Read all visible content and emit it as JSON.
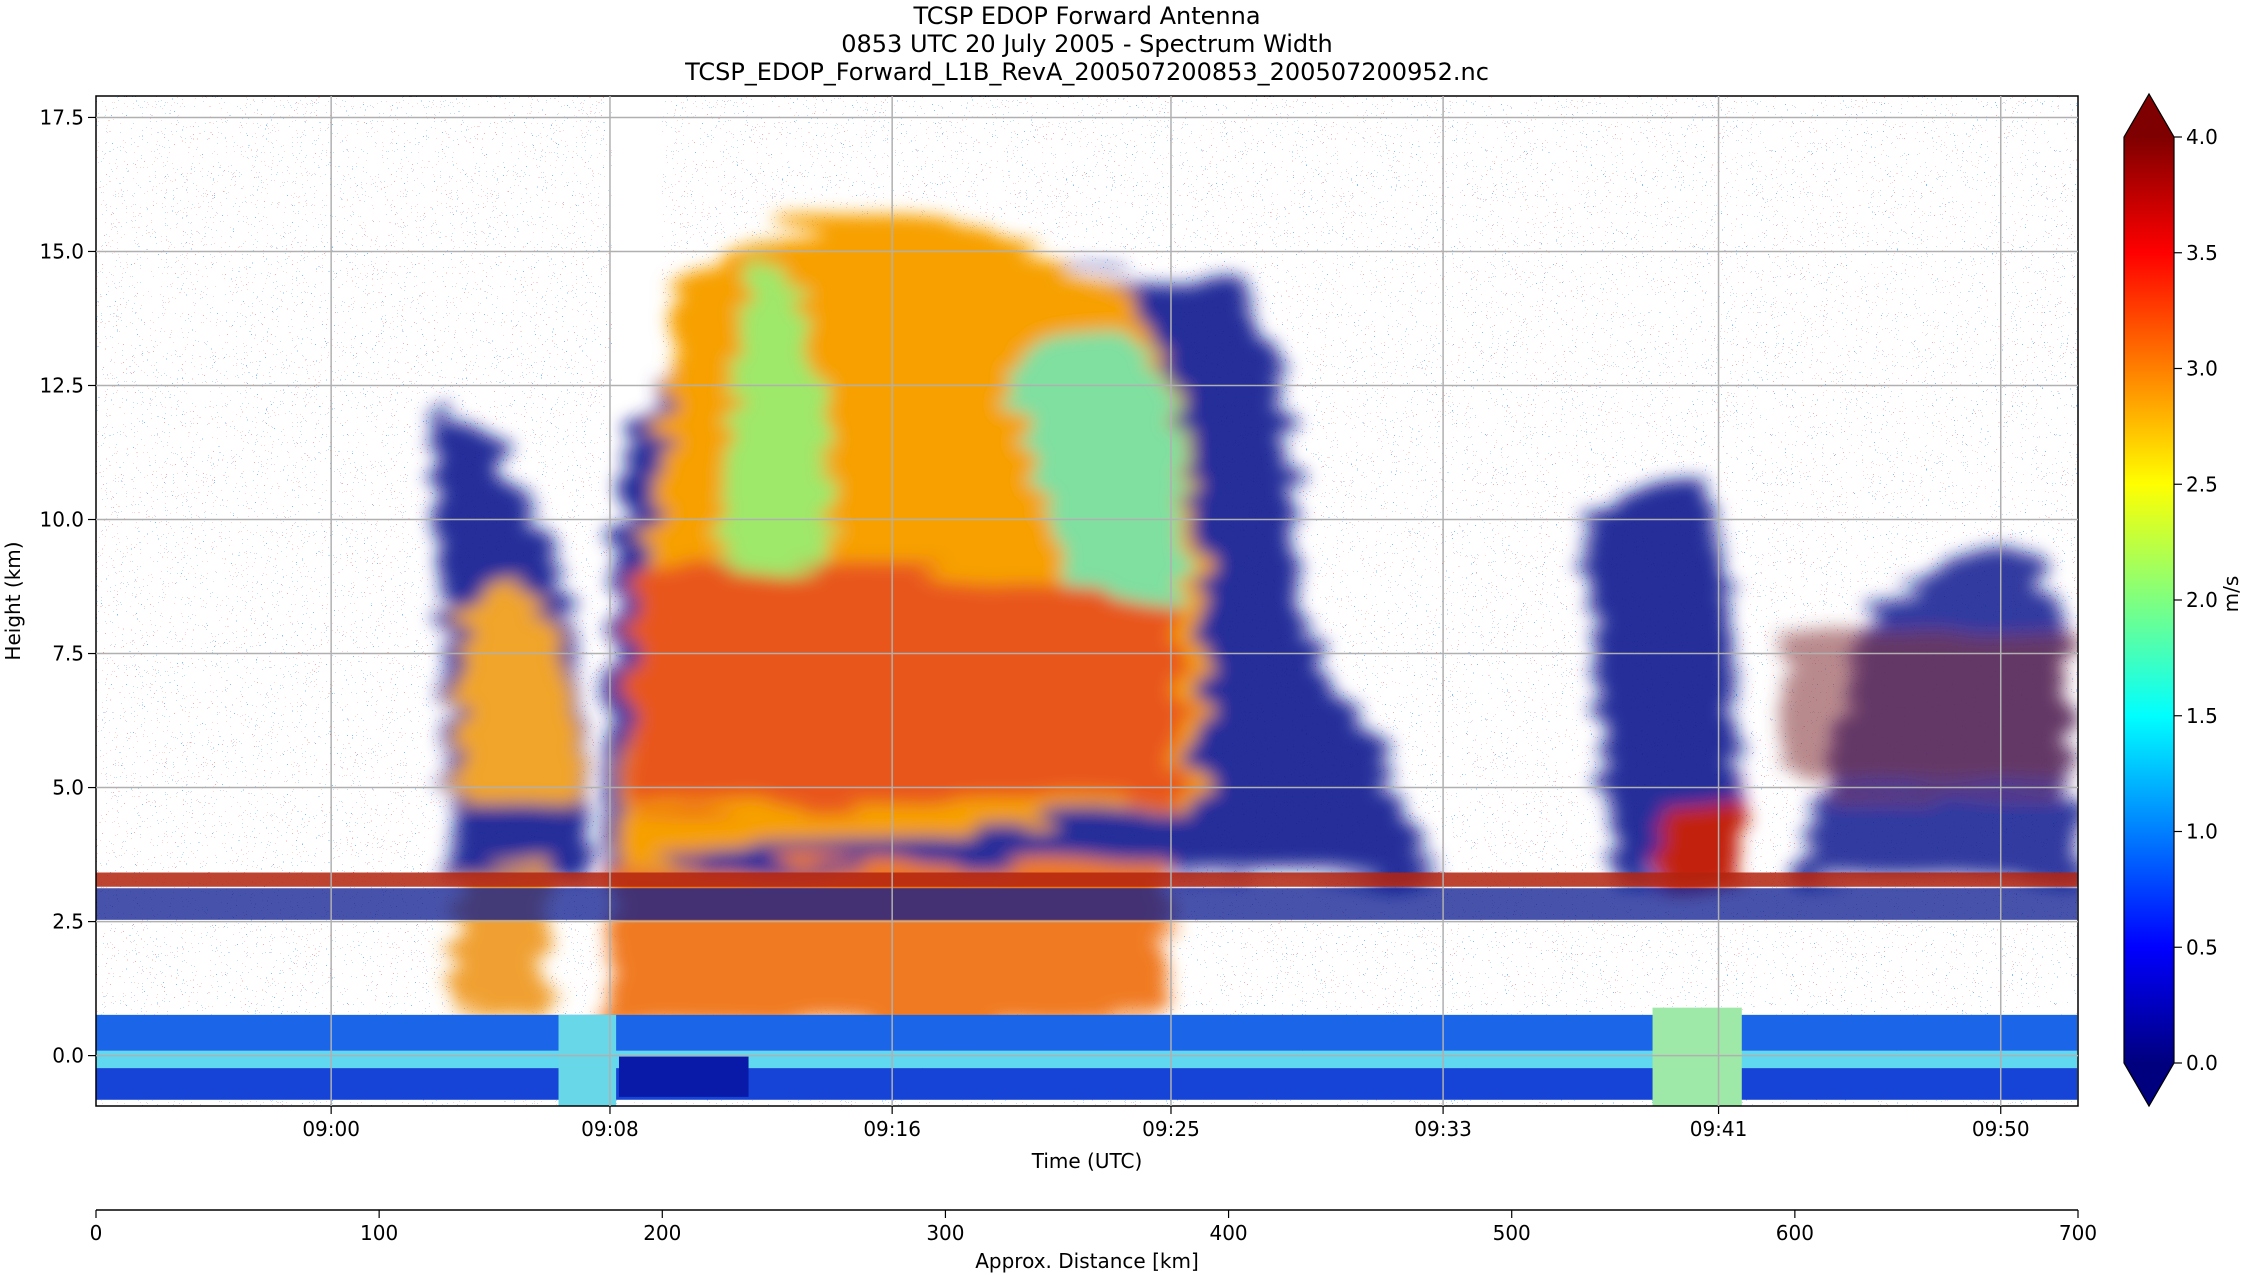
{
  "chart_data": {
    "type": "curtain",
    "title": "TCSP EDOP Forward Antenna",
    "subtitle": "0853 UTC 20 July 2005 - Spectrum Width",
    "file_name": "TCSP_EDOP_Forward_L1B_RevA_200507200853_200507200952.nc",
    "xlabel": "Time (UTC)",
    "ylabel": "Height (km)",
    "xlim": [
      533,
      592
    ],
    "xticks": [
      {
        "value": 540,
        "label": "09:00"
      },
      {
        "value": 548.3,
        "label": "09:08"
      },
      {
        "value": 556.7,
        "label": "09:16"
      },
      {
        "value": 565,
        "label": "09:25"
      },
      {
        "value": 573.1,
        "label": "09:33"
      },
      {
        "value": 581.3,
        "label": "09:41"
      },
      {
        "value": 589.7,
        "label": "09:50"
      }
    ],
    "ylim": [
      -0.94,
      17.9
    ],
    "yticks": [
      {
        "value": 0,
        "label": "0.0"
      },
      2.5,
      {
        "value": 5,
        "label": "5.0"
      },
      7.5,
      {
        "value": 10,
        "label": "10.0"
      },
      12.5,
      {
        "value": 15,
        "label": "15.0"
      },
      17.5
    ],
    "grid": true,
    "x2label": "Approx. Distance [km]",
    "x2lim": [
      0,
      700
    ],
    "x2ticks": [
      0,
      100,
      200,
      300,
      400,
      500,
      600,
      700
    ],
    "colorbar": {
      "label": "m/s",
      "lim": [
        0,
        4
      ],
      "ticks": [
        {
          "value": 0,
          "label": "0.0"
        },
        0.5,
        {
          "value": 1,
          "label": "1.0"
        },
        1.5,
        {
          "value": 2,
          "label": "2.0"
        },
        2.5,
        {
          "value": 3,
          "label": "3.0"
        },
        3.5,
        {
          "value": 4,
          "label": "4.0"
        }
      ],
      "colors": [
        "#00007f",
        "#0000ff",
        "#007fff",
        "#00ffff",
        "#7fff7f",
        "#ffff00",
        "#ff7f00",
        "#ff0000",
        "#7f0000"
      ],
      "extend": "both"
    }
  }
}
